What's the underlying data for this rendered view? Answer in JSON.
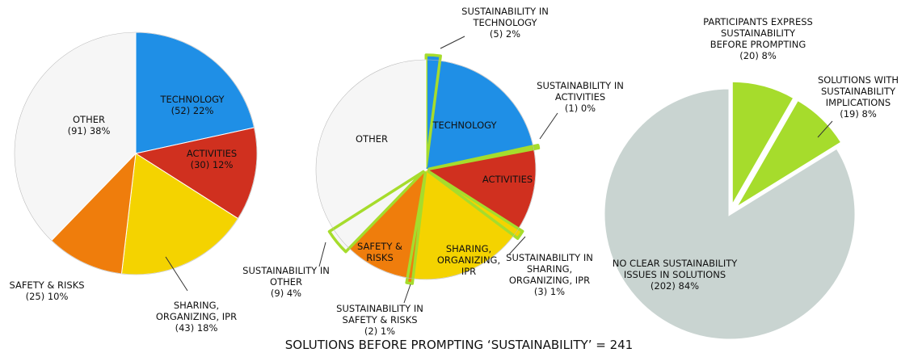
{
  "caption": "SOLUTIONS BEFORE PROMPTING ‘SUSTAINABILITY’ = 241",
  "chart_data": [
    {
      "type": "pie",
      "categories": [
        "TECHNOLOGY",
        "ACTIVITIES",
        "SHARING, ORGANIZING, IPR",
        "SAFETY & RISKS",
        "OTHER"
      ],
      "values": [
        52,
        30,
        43,
        25,
        91
      ],
      "value_labels": [
        "(52) 22%",
        "(30) 12%",
        "(43) 18%",
        "(25) 10%",
        "(91) 38%"
      ],
      "colors": [
        "#1f8fe6",
        "#d0301f",
        "#f4d300",
        "#ef7d0c",
        "#f6f6f6"
      ]
    },
    {
      "type": "pie",
      "categories": [
        "TECHNOLOGY",
        "ACTIVITIES",
        "SHARING, ORGANIZING, IPR",
        "SAFETY & RISKS",
        "OTHER"
      ],
      "values": [
        52,
        30,
        43,
        25,
        91
      ],
      "colors": [
        "#1f8fe6",
        "#d0301f",
        "#f4d300",
        "#ef7d0c",
        "#f6f6f6"
      ],
      "highlights": {
        "labels": [
          "SUSTAINABILITY IN TECHNOLOGY",
          "SUSTAINABILITY IN ACTIVITIES",
          "SUSTAINABILITY IN SHARING, ORGANIZING, IPR",
          "SUSTAINABILITY IN SAFETY & RISKS",
          "SUSTAINABILITY IN OTHER"
        ],
        "values": [
          5,
          1,
          3,
          2,
          9
        ],
        "value_labels": [
          "(5) 2%",
          "(1) 0%",
          "(3) 1%",
          "(2) 1%",
          "(9) 4%"
        ],
        "color": "#a6dc2c"
      }
    },
    {
      "type": "pie",
      "categories": [
        "PARTICIPANTS EXPRESS SUSTAINABILITY BEFORE PROMPTING",
        "SOLUTIONS WITH SUSTAINABILITY IMPLICATIONS",
        "NO CLEAR SUSTAINABILITY ISSUES IN SOLUTIONS"
      ],
      "values": [
        20,
        19,
        202
      ],
      "value_labels": [
        "(20) 8%",
        "(19) 8%",
        "(202) 84%"
      ],
      "colors": [
        "#a6dc2c",
        "#a6dc2c",
        "#c9d4d1"
      ],
      "exploded": [
        true,
        true,
        false
      ]
    }
  ]
}
